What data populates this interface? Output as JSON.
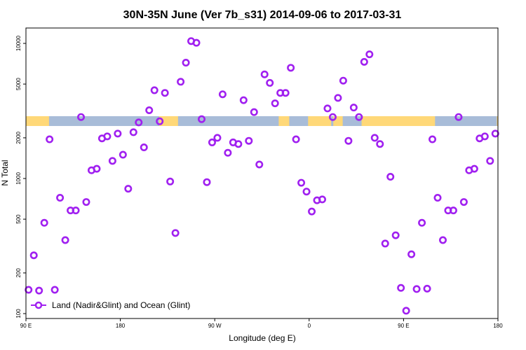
{
  "chart_data": {
    "type": "scatter",
    "title": "30N-35N June (Ver 7b_s31)   2014-09-06 to 2017-03-31",
    "xlabel": "Longitude (deg E)",
    "ylabel": "N Total",
    "x_scale": "longitude",
    "y_scale": "log",
    "xlim": [
      90,
      540
    ],
    "ylim": [
      92,
      13000
    ],
    "x_ticks": [
      {
        "value": 90,
        "label": "90 E"
      },
      {
        "value": 180,
        "label": "180"
      },
      {
        "value": 270,
        "label": "90 W"
      },
      {
        "value": 360,
        "label": "0"
      },
      {
        "value": 450,
        "label": "90 E"
      },
      {
        "value": 540,
        "label": "180"
      }
    ],
    "y_ticks": [
      100,
      200,
      500,
      1000,
      2000,
      5000,
      10000
    ],
    "grid": false,
    "legend": {
      "placement": "bottom-left",
      "entries": [
        {
          "label": "Land (Nadir&Glint) and Ocean (Glint)",
          "color": "#a020f0"
        }
      ]
    },
    "land_ocean_band": {
      "land_color": "#ffd878",
      "ocean_color": "#a8bcd8"
    },
    "series": [
      {
        "name": "Land (Nadir&Glint) and Ocean (Glint)",
        "color": "#a020f0",
        "x": [
          92.5,
          97.5,
          102.5,
          107.5,
          112.5,
          117.5,
          122.5,
          127.5,
          132.5,
          137.5,
          142.5,
          147.5,
          152.5,
          157.5,
          162.5,
          167.5,
          172.5,
          177.5,
          182.5,
          187.5,
          192.5,
          197.5,
          202.5,
          207.5,
          212.5,
          217.5,
          222.5,
          227.5,
          232.5,
          237.5,
          242.5,
          247.5,
          252.5,
          257.5,
          262.5,
          267.5,
          272.5,
          277.5,
          282.5,
          287.5,
          292.5,
          297.5,
          302.5,
          307.5,
          312.5,
          317.5,
          322.5,
          327.5,
          332.5,
          337.5,
          342.5,
          347.5,
          352.5,
          357.5,
          362.5,
          367.5,
          372.5,
          377.5,
          382.5,
          387.5,
          392.5,
          397.5,
          402.5,
          407.5,
          412.5,
          417.5,
          422.5,
          427.5,
          432.5,
          437.5,
          442.5,
          447.5,
          452.5,
          457.5,
          462.5,
          467.5,
          472.5,
          477.5,
          482.5,
          487.5,
          492.5,
          497.5,
          502.5,
          507.5,
          512.5,
          517.5,
          522.5,
          527.5,
          532.5,
          537.5
        ],
        "y": [
          150,
          270,
          148,
          470,
          1950,
          150,
          720,
          350,
          580,
          580,
          2850,
          670,
          1150,
          1180,
          1980,
          2050,
          1350,
          2150,
          1500,
          840,
          2200,
          2600,
          1700,
          3200,
          4500,
          2650,
          4300,
          950,
          395,
          5200,
          7200,
          10400,
          10100,
          2750,
          940,
          1850,
          2000,
          4200,
          1550,
          1850,
          1800,
          3800,
          1900,
          3100,
          1270,
          5900,
          5100,
          3600,
          4300,
          4300,
          6600,
          1950,
          930,
          800,
          570,
          690,
          700,
          3300,
          2850,
          3950,
          5300,
          1900,
          3350,
          2850,
          7300,
          8300,
          2000,
          1800,
          330,
          1030,
          380,
          155,
          105,
          275,
          152,
          470,
          153,
          1950,
          720,
          350,
          580,
          580,
          2850,
          670,
          1150,
          1180,
          1980,
          2050,
          1350,
          2150
        ]
      }
    ]
  }
}
